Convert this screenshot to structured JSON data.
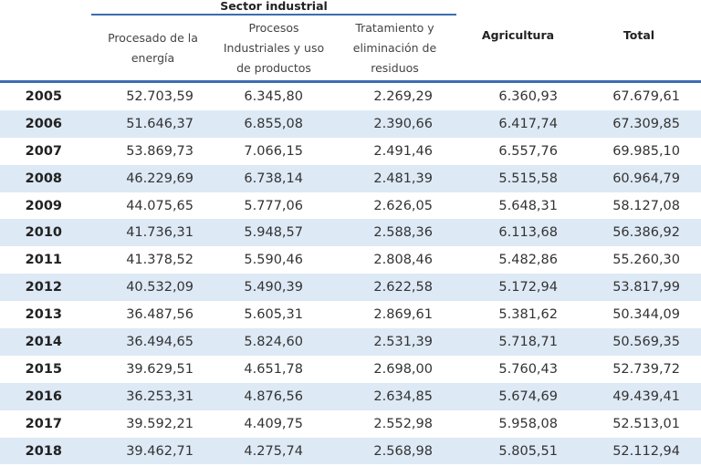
{
  "header": {
    "group": "Sector industrial",
    "cols": [
      "Procesado de la energía",
      "Procesos Industriales y uso de productos",
      "Tratamiento y eliminación de residuos",
      "Agricultura",
      "Total"
    ]
  },
  "rows": [
    [
      "2005",
      "52.703,59",
      "6.345,80",
      "2.269,29",
      "6.360,93",
      "67.679,61"
    ],
    [
      "2006",
      "51.646,37",
      "6.855,08",
      "2.390,66",
      "6.417,74",
      "67.309,85"
    ],
    [
      "2007",
      "53.869,73",
      "7.066,15",
      "2.491,46",
      "6.557,76",
      "69.985,10"
    ],
    [
      "2008",
      "46.229,69",
      "6.738,14",
      "2.481,39",
      "5.515,58",
      "60.964,79"
    ],
    [
      "2009",
      "44.075,65",
      "5.777,06",
      "2.626,05",
      "5.648,31",
      "58.127,08"
    ],
    [
      "2010",
      "41.736,31",
      "5.948,57",
      "2.588,36",
      "6.113,68",
      "56.386,92"
    ],
    [
      "2011",
      "41.378,52",
      "5.590,46",
      "2.808,46",
      "5.482,86",
      "55.260,30"
    ],
    [
      "2012",
      "40.532,09",
      "5.490,39",
      "2.622,58",
      "5.172,94",
      "53.817,99"
    ],
    [
      "2013",
      "36.487,56",
      "5.605,31",
      "2.869,61",
      "5.381,62",
      "50.344,09"
    ],
    [
      "2014",
      "36.494,65",
      "5.824,60",
      "2.531,39",
      "5.718,71",
      "50.569,35"
    ],
    [
      "2015",
      "39.629,51",
      "4.651,78",
      "2.698,00",
      "5.760,43",
      "52.739,72"
    ],
    [
      "2016",
      "36.253,31",
      "4.876,56",
      "2.634,85",
      "5.674,69",
      "49.439,41"
    ],
    [
      "2017",
      "39.592,21",
      "4.409,75",
      "2.552,98",
      "5.958,08",
      "52.513,01"
    ],
    [
      "2018",
      "39.462,71",
      "4.275,74",
      "2.568,98",
      "5.805,51",
      "52.112,94"
    ]
  ]
}
